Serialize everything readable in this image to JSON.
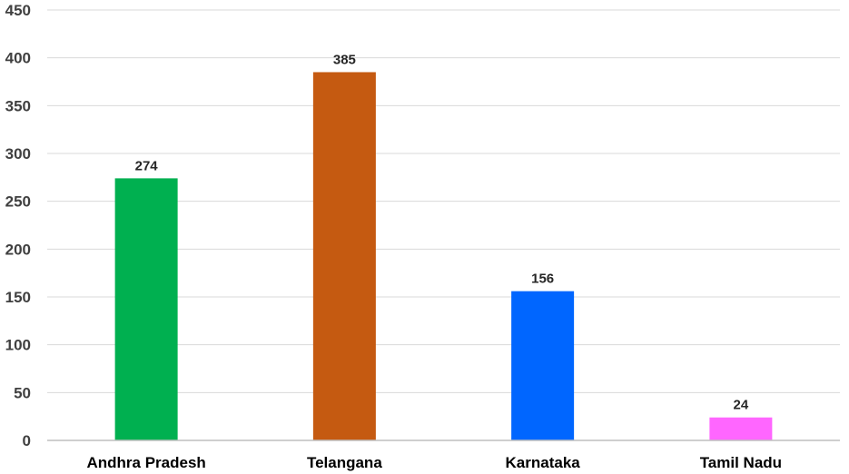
{
  "chart_data": {
    "type": "bar",
    "categories": [
      "Andhra Pradesh",
      "Telangana",
      "Karnataka",
      "Tamil Nadu"
    ],
    "values": [
      274,
      385,
      156,
      24
    ],
    "colors": [
      "#00b050",
      "#c55a11",
      "#0066ff",
      "#ff66ff"
    ],
    "yticks": [
      0,
      50,
      100,
      150,
      200,
      250,
      300,
      350,
      400,
      450
    ],
    "ylim": [
      0,
      450
    ],
    "grid": true,
    "legend": "none",
    "title": "",
    "xlabel": "",
    "ylabel": ""
  }
}
